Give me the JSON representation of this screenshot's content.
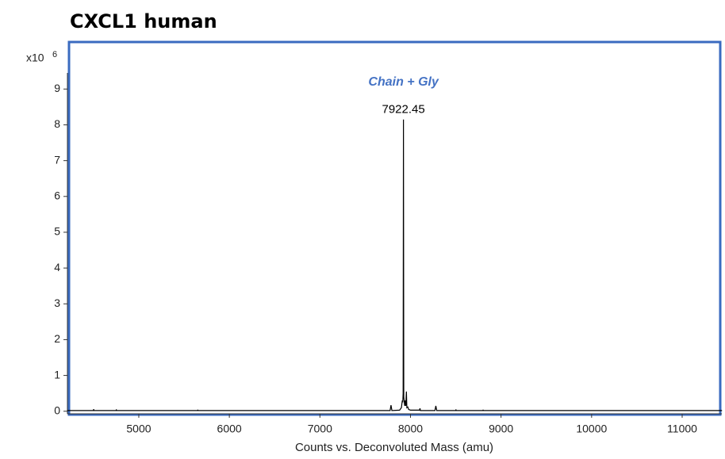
{
  "chart_data": {
    "type": "line",
    "title": "CXCL1 human",
    "y_multiplier": {
      "base": "x10",
      "exponent": "6"
    },
    "xlabel": "Counts vs. Deconvoluted Mass (amu)",
    "x": [
      4210,
      4500,
      4502,
      4504,
      4750,
      4752,
      4754,
      5650,
      5652,
      5654,
      7775,
      7785,
      7795,
      7880,
      7900,
      7910,
      7915,
      7919,
      7922.45,
      7926,
      7930,
      7936,
      7942,
      7948,
      7955,
      7960,
      7970,
      7980,
      8000,
      8100,
      8105,
      8110,
      8270,
      8280,
      8290,
      8500,
      8502,
      8504,
      8800,
      8802,
      8804,
      11440
    ],
    "values": [
      0.02,
      0.02,
      0.06,
      0.02,
      0.02,
      0.05,
      0.02,
      0.02,
      0.04,
      0.02,
      0.02,
      0.17,
      0.02,
      0.03,
      0.1,
      0.3,
      0.25,
      0.5,
      8.15,
      0.4,
      0.3,
      0.15,
      0.3,
      0.15,
      0.55,
      0.1,
      0.12,
      0.05,
      0.03,
      0.03,
      0.08,
      0.02,
      0.02,
      0.15,
      0.02,
      0.02,
      0.05,
      0.02,
      0.02,
      0.04,
      0.02,
      0.02
    ],
    "color": "#000000",
    "xlim": [
      4212,
      11438
    ],
    "ylim": [
      -0.05,
      9.45
    ],
    "xticks": [
      5000,
      6000,
      7000,
      8000,
      9000,
      10000,
      11000
    ],
    "yticks": [
      0,
      1,
      2,
      3,
      4,
      5,
      6,
      7,
      8,
      9
    ],
    "annotations": [
      {
        "text": "Chain + Gly",
        "color": "#4472c4"
      },
      {
        "x": 7922.45,
        "y": 8.15
      }
    ]
  }
}
